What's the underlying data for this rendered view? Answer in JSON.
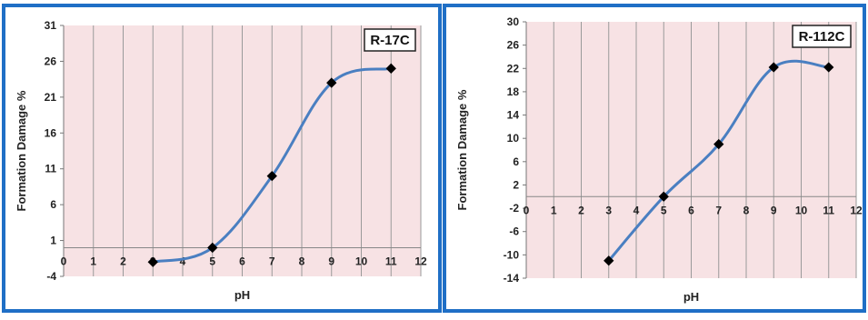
{
  "chart_data": [
    {
      "type": "line",
      "title": "R-17C",
      "xlabel": "pH",
      "ylabel": "Formation Damage  %",
      "xlim": [
        0,
        12
      ],
      "ylim": [
        -4,
        31
      ],
      "xticks": [
        0,
        1,
        2,
        3,
        4,
        5,
        6,
        7,
        8,
        9,
        10,
        11,
        12
      ],
      "yticks": [
        -4,
        1,
        6,
        11,
        16,
        21,
        26,
        31
      ],
      "x_axis_at_y": 0,
      "grid": "vertical",
      "smooth": true,
      "colors": {
        "line": "#4a7fc1",
        "plot_bg": "#f7e2e4",
        "grid": "#9a9a9a",
        "marker": "#000000"
      },
      "series": [
        {
          "x": [
            3,
            5,
            7,
            9,
            11
          ],
          "y": [
            -2,
            0,
            10,
            23,
            25
          ]
        }
      ]
    },
    {
      "type": "line",
      "title": "R-112C",
      "xlabel": "pH",
      "ylabel": "Formation Damage  %",
      "xlim": [
        0,
        12
      ],
      "ylim": [
        -14,
        30
      ],
      "xticks": [
        0,
        1,
        2,
        3,
        4,
        5,
        6,
        7,
        8,
        9,
        10,
        11,
        12
      ],
      "yticks": [
        -14,
        -10,
        -6,
        -2,
        2,
        6,
        10,
        14,
        18,
        22,
        26,
        30
      ],
      "x_axis_at_y": 0,
      "grid": "vertical",
      "smooth": true,
      "colors": {
        "line": "#4a7fc1",
        "plot_bg": "#f7e2e4",
        "grid": "#9a9a9a",
        "marker": "#000000"
      },
      "series": [
        {
          "x": [
            3,
            5,
            7,
            9,
            11
          ],
          "y": [
            -11,
            0,
            9,
            22.2,
            22.2
          ]
        }
      ]
    }
  ]
}
